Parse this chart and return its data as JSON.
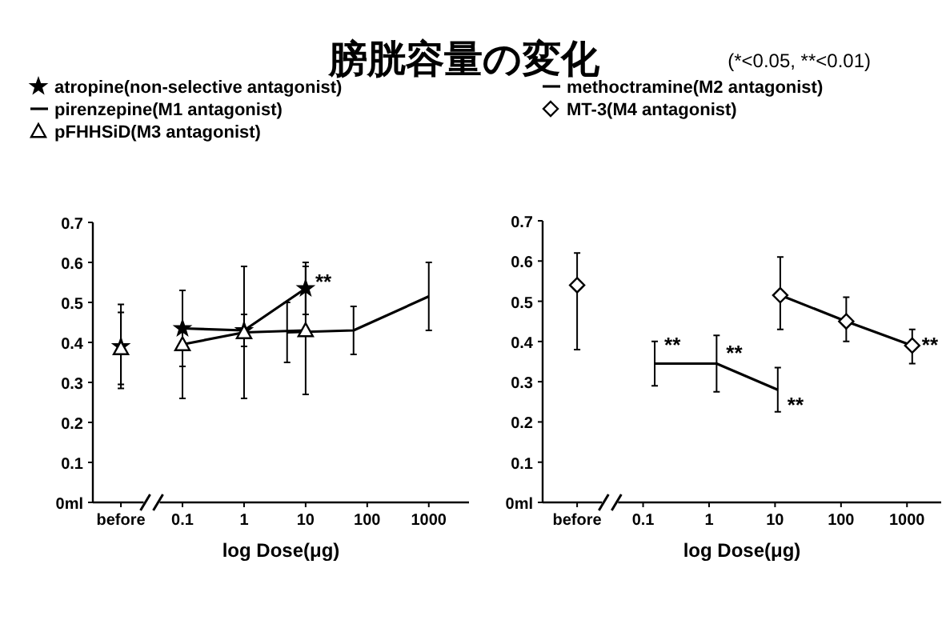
{
  "chart_data": [
    {
      "type": "line",
      "title": "膀胱容量の変化",
      "xlabel": "log Dose(μg)",
      "log": "x",
      "legend": "top left",
      "xlim": [
        0.0035,
        4500
      ],
      "ylim": [
        0,
        0.7
      ],
      "xticks": [
        {
          "value": 0.01,
          "label": "before"
        },
        0.1,
        1,
        10,
        100,
        1000
      ],
      "yticks": [
        {
          "value": 0,
          "label": "0ml"
        },
        0.1,
        0.2,
        0.3,
        0.4,
        0.5,
        0.6,
        0.7
      ],
      "series": [
        {
          "name": "atropine(non-selective antagonist)",
          "color": "#000000",
          "marker": "star",
          "x": [
            0.1,
            1,
            10
          ],
          "values": [
            0.435,
            0.43,
            0.535
          ],
          "errors": [
            0.095,
            0.04,
            0.065
          ]
        },
        {
          "name": "pirenzepine(M1 antagonist)",
          "color": "#000000",
          "marker": "none",
          "x": [
            5,
            60,
            1000
          ],
          "values": [
            0.425,
            0.43,
            0.515
          ],
          "errors": [
            0.075,
            0.06,
            0.085
          ]
        },
        {
          "name": "pFHHSiD(M3 antagonist)",
          "color": "#000000",
          "marker": "triangle",
          "x": [
            0.1,
            1,
            10
          ],
          "values": [
            0.395,
            0.425,
            0.43
          ],
          "errors": [
            0.135,
            0.165,
            0.16
          ]
        },
        {
          "type": "scatter",
          "color": "#000000",
          "marker": "star",
          "x": [
            0.01
          ],
          "values": [
            0.39
          ],
          "errors": [
            0.105
          ]
        },
        {
          "type": "scatter",
          "color": "#000000",
          "marker": "triangle",
          "x": [
            0.01
          ],
          "values": [
            0.385
          ],
          "errors": [
            0.09
          ]
        }
      ],
      "annotations": [
        {
          "text": "**",
          "x": 10,
          "y": 0.55
        }
      ]
    },
    {
      "type": "line",
      "xlabel": "log Dose(μg)",
      "log": "x",
      "legend": "top left",
      "xlim": [
        0.003,
        3300
      ],
      "ylim": [
        0,
        0.7
      ],
      "xticks": [
        {
          "value": 0.01,
          "label": "before"
        },
        0.1,
        1,
        10,
        100,
        1000
      ],
      "yticks": [
        {
          "value": 0,
          "label": "0ml"
        },
        0.1,
        0.2,
        0.3,
        0.4,
        0.5,
        0.6,
        0.7
      ],
      "series": [
        {
          "name": "methoctramine(M2 antagonist)",
          "color": "#000000",
          "marker": "none",
          "x": [
            0.15,
            1.3,
            11
          ],
          "values": [
            0.345,
            0.345,
            0.28
          ],
          "errors": [
            0.055,
            0.07,
            0.055
          ]
        },
        {
          "name": "MT-3(M4 antagonist)",
          "color": "#000000",
          "marker": "diamond",
          "x": [
            12,
            120,
            1200
          ],
          "values": [
            0.515,
            0.45,
            0.39
          ],
          "errors": [
            [
              0.43,
              0.61
            ],
            [
              0.4,
              0.51
            ],
            [
              0.345,
              0.43
            ]
          ]
        },
        {
          "type": "scatter",
          "color": "#000000",
          "marker": "diamond",
          "x": [
            0.01
          ],
          "values": [
            0.54
          ],
          "errors": [
            [
              0.38,
              0.62
            ]
          ]
        }
      ],
      "annotations": [
        "(*<0.05, **<0.01)",
        {
          "text": "**",
          "x": 0.15,
          "y": 0.39
        },
        {
          "text": "**",
          "x": 1.3,
          "y": 0.37
        },
        {
          "text": "**",
          "x": 11,
          "y": 0.24
        },
        {
          "text": "**",
          "x": 1200,
          "y": 0.39
        }
      ]
    }
  ]
}
